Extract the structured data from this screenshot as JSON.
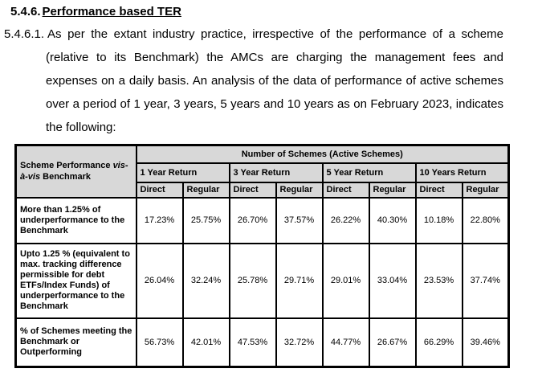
{
  "document": {
    "heading": {
      "number": "5.4.6.",
      "title": "Performance based TER"
    },
    "paragraph": {
      "number": "5.4.6.1.",
      "text": "As per the extant industry practice, irrespective of the performance of a scheme (relative to its Benchmark) the AMCs are charging the management fees and expenses on a daily basis. An analysis of the data of performance of active schemes over a period of 1 year, 3 years, 5 years and 10 years as on February 2023, indicates the following:"
    }
  },
  "table": {
    "corner_header": {
      "pre": "Scheme Performance ",
      "italic": "vis-à-vis",
      "post": " Benchmark"
    },
    "span_header": "Number of Schemes (Active Schemes)",
    "period_headers": [
      "1 Year Return",
      "3 Year Return",
      "5 Year Return",
      "10 Years Return"
    ],
    "sub_headers": [
      "Direct",
      "Regular"
    ],
    "rows": [
      {
        "label": "More than 1.25% of underperformance to the Benchmark",
        "values": [
          "17.23%",
          "25.75%",
          "26.70%",
          "37.57%",
          "26.22%",
          "40.30%",
          "10.18%",
          "22.80%"
        ]
      },
      {
        "label": "Upto 1.25 % (equivalent to max. tracking difference permissible for debt ETFs/Index Funds) of underperformance to the Benchmark",
        "values": [
          "26.04%",
          "32.24%",
          "25.78%",
          "29.71%",
          "29.01%",
          "33.04%",
          "23.53%",
          "37.74%"
        ]
      },
      {
        "label": "% of Schemes meeting the Benchmark or Outperforming",
        "values": [
          "56.73%",
          "42.01%",
          "47.53%",
          "32.72%",
          "44.77%",
          "26.67%",
          "66.29%",
          "39.46%"
        ]
      }
    ],
    "colors": {
      "header_bg": "#d8d8d8",
      "border": "#000000"
    }
  }
}
